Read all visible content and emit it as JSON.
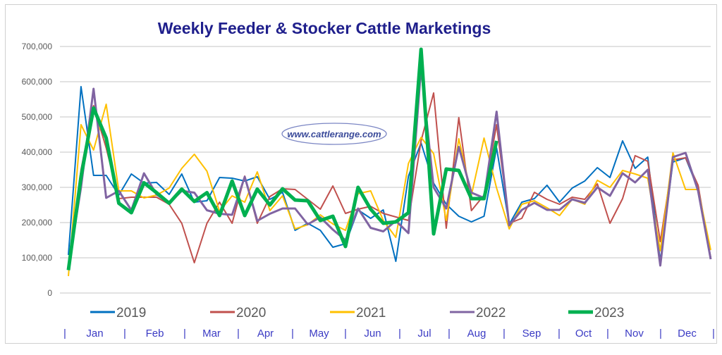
{
  "chart_data": {
    "type": "line",
    "title": "Weekly Feeder & Stocker Cattle Marketings",
    "watermark": "www.cattlerange.com",
    "xlabel": "",
    "ylabel": "",
    "ylim": [
      0,
      700000
    ],
    "yticks": [
      "0",
      "100,000",
      "200,000",
      "300,000",
      "400,000",
      "500,000",
      "600,000",
      "700,000"
    ],
    "grid": true,
    "legend_placement": "bottom",
    "months": [
      "Jan",
      "Feb",
      "Mar",
      "Apr",
      "May",
      "Jun",
      "Jul",
      "Aug",
      "Sep",
      "Oct",
      "Nov",
      "Dec"
    ],
    "x_unit": "week of year (1-52)",
    "series": [
      {
        "name": "2019",
        "color": "#0070C0",
        "width": 2,
        "values": [
          108000,
          586000,
          334000,
          334000,
          278000,
          338000,
          312000,
          314000,
          280000,
          338000,
          258000,
          262000,
          328000,
          326000,
          318000,
          330000,
          266000,
          286000,
          178000,
          198000,
          178000,
          130000,
          140000,
          236000,
          212000,
          236000,
          90000,
          332000,
          426000,
          312000,
          252000,
          218000,
          202000,
          218000,
          412000,
          195000,
          258000,
          268000,
          306000,
          258000,
          298000,
          318000,
          356000,
          328000,
          432000,
          354000,
          386000,
          90000,
          372000,
          384000,
          295000,
          100000
        ]
      },
      {
        "name": "2020",
        "color": "#C0504D",
        "width": 2,
        "values": [
          75000,
          350000,
          532000,
          412000,
          268000,
          272000,
          272000,
          272000,
          252000,
          198000,
          86000,
          198000,
          258000,
          198000,
          332000,
          198000,
          274000,
          296000,
          294000,
          266000,
          238000,
          304000,
          226000,
          238000,
          246000,
          226000,
          216000,
          206000,
          432000,
          568000,
          184000,
          498000,
          234000,
          278000,
          478000,
          198000,
          212000,
          286000,
          266000,
          252000,
          272000,
          266000,
          310000,
          198000,
          268000,
          390000,
          374000,
          146000,
          378000,
          384000,
          306000,
          100000
        ]
      },
      {
        "name": "2021",
        "color": "#FFC000",
        "width": 2,
        "values": [
          48000,
          478000,
          406000,
          536000,
          290000,
          290000,
          270000,
          278000,
          298000,
          354000,
          394000,
          346000,
          232000,
          276000,
          258000,
          344000,
          234000,
          276000,
          182000,
          194000,
          222000,
          196000,
          178000,
          282000,
          290000,
          206000,
          158000,
          368000,
          442000,
          396000,
          206000,
          438000,
          278000,
          440000,
          298000,
          182000,
          252000,
          262000,
          242000,
          220000,
          266000,
          252000,
          320000,
          300000,
          348000,
          338000,
          326000,
          120000,
          398000,
          294000,
          294000,
          122000
        ]
      },
      {
        "name": "2022",
        "color": "#8064A2",
        "width": 3,
        "values": [
          75000,
          300000,
          580000,
          270000,
          290000,
          235000,
          340000,
          280000,
          255000,
          290000,
          285000,
          235000,
          225000,
          222000,
          330000,
          205000,
          225000,
          240000,
          240000,
          195000,
          215000,
          180000,
          150000,
          240000,
          185000,
          175000,
          205000,
          170000,
          640000,
          300000,
          240000,
          415000,
          285000,
          270000,
          515000,
          192000,
          236000,
          256000,
          236000,
          236000,
          266000,
          256000,
          300000,
          276000,
          340000,
          314000,
          350000,
          78000,
          386000,
          398000,
          290000,
          96000
        ]
      },
      {
        "name": "2023",
        "color": "#00B050",
        "width": 5,
        "values": [
          65000,
          330000,
          525000,
          440000,
          255000,
          228000,
          313000,
          285000,
          255000,
          295000,
          260000,
          285000,
          220000,
          318000,
          220000,
          295000,
          250000,
          296000,
          264000,
          262000,
          206000,
          218000,
          132000,
          300000,
          238000,
          198000,
          202000,
          228000,
          692000,
          168000,
          352000,
          348000,
          268000,
          268000,
          432000
        ]
      }
    ]
  }
}
